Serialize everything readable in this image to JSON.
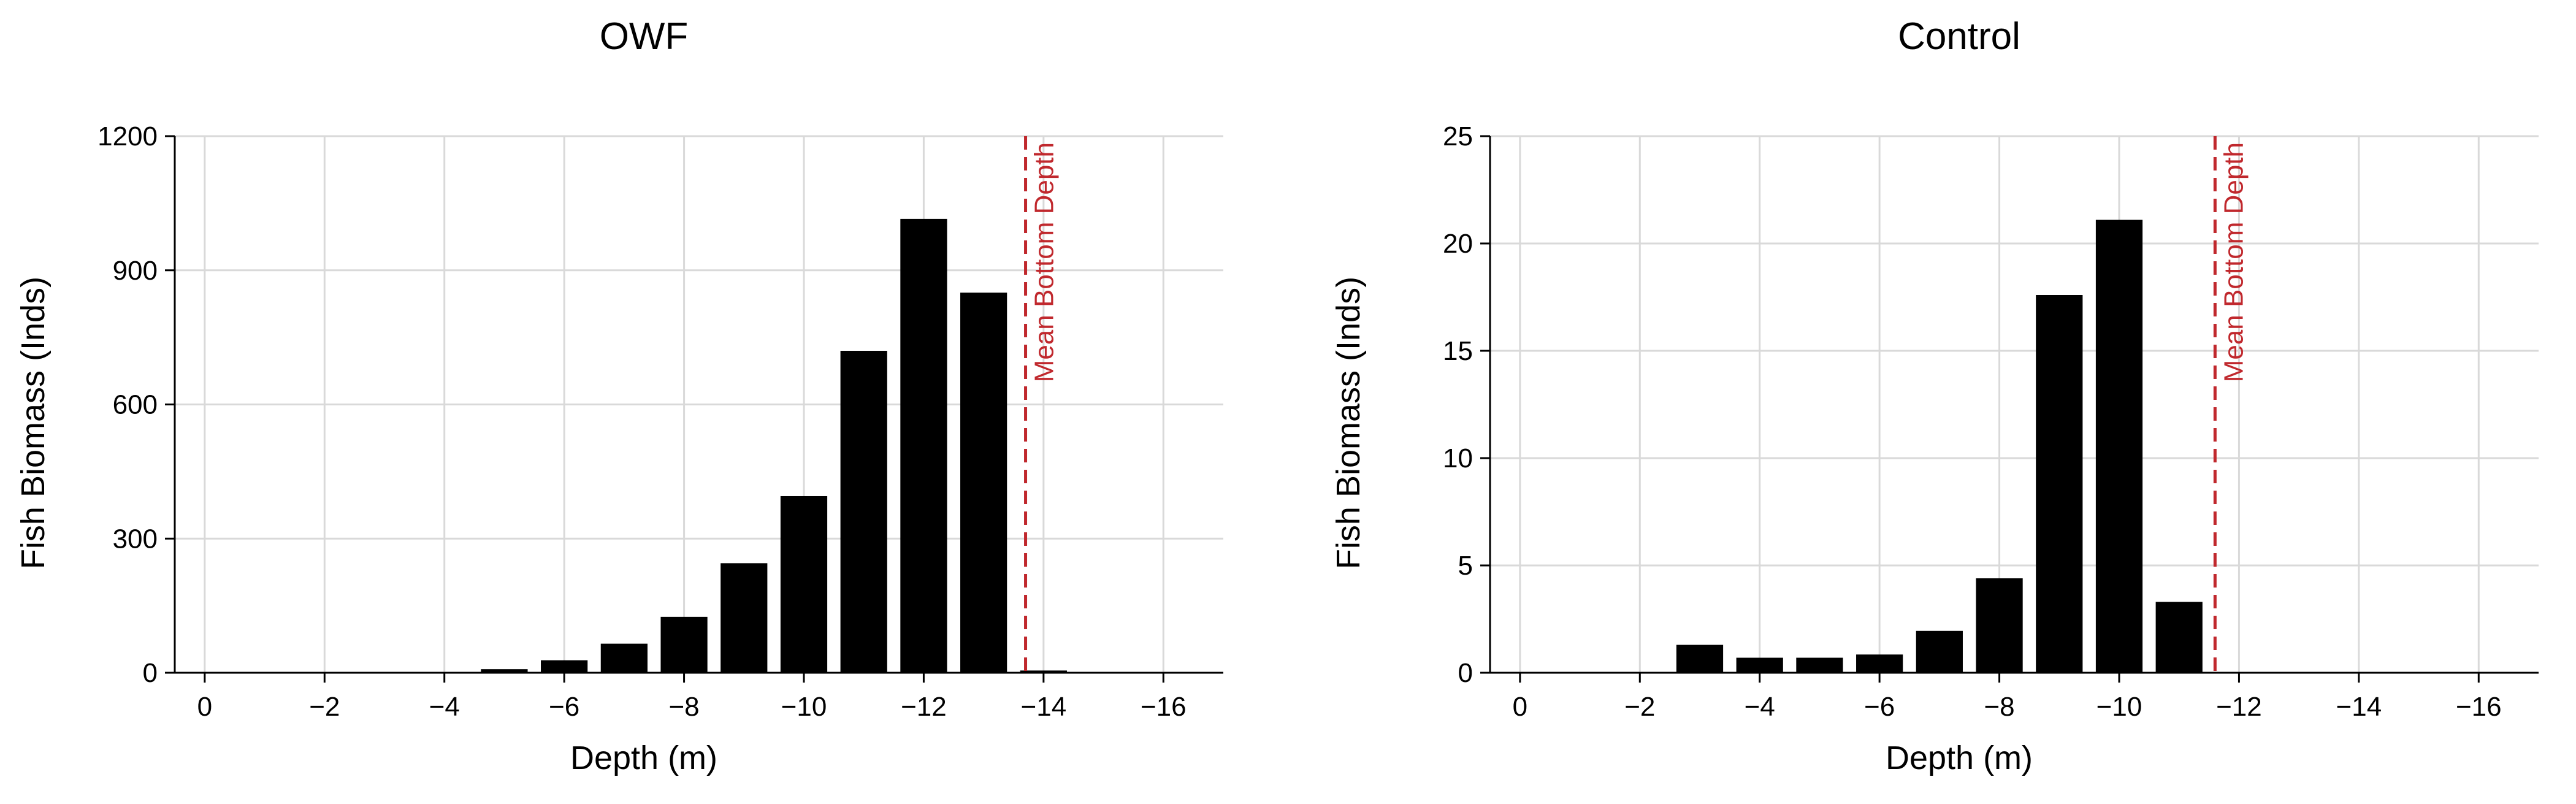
{
  "colors": {
    "bar": "#000000",
    "grid": "#d9d9d9",
    "axis": "#000000",
    "reference": "#c0282d",
    "background": "#ffffff"
  },
  "chart_data": [
    {
      "type": "bar",
      "title": "OWF",
      "xlabel": "Depth (m)",
      "ylabel": "Fish Biomass (Inds)",
      "xlim": [
        0.5,
        -17
      ],
      "ylim": [
        0,
        1200
      ],
      "xticks": [
        0,
        -2,
        -4,
        -6,
        -8,
        -10,
        -12,
        -14,
        -16
      ],
      "xtick_labels": [
        "0",
        "−2",
        "−4",
        "−6",
        "−8",
        "−10",
        "−12",
        "−14",
        "−16"
      ],
      "yticks": [
        0,
        300,
        600,
        900,
        1200
      ],
      "ytick_labels": [
        "0",
        "300",
        "600",
        "900",
        "1200"
      ],
      "grid": true,
      "x": [
        -3,
        -4,
        -5,
        -6,
        -7,
        -8,
        -9,
        -10,
        -11,
        -12,
        -13,
        -14
      ],
      "values": [
        1,
        2,
        8,
        28,
        65,
        125,
        245,
        395,
        720,
        1015,
        850,
        5
      ],
      "reference_line": {
        "x": -13.7,
        "label": "Mean Bottom Depth"
      }
    },
    {
      "type": "bar",
      "title": "Control",
      "xlabel": "Depth (m)",
      "ylabel": "Fish Biomass (Inds)",
      "xlim": [
        0.5,
        -17
      ],
      "ylim": [
        0,
        25
      ],
      "xticks": [
        0,
        -2,
        -4,
        -6,
        -8,
        -10,
        -12,
        -14,
        -16
      ],
      "xtick_labels": [
        "0",
        "−2",
        "−4",
        "−6",
        "−8",
        "−10",
        "−12",
        "−14",
        "−16"
      ],
      "yticks": [
        0,
        5,
        10,
        15,
        20,
        25
      ],
      "ytick_labels": [
        "0",
        "5",
        "10",
        "15",
        "20",
        "25"
      ],
      "grid": true,
      "x": [
        -3,
        -4,
        -5,
        -6,
        -7,
        -8,
        -9,
        -10,
        -11
      ],
      "values": [
        1.3,
        0.7,
        0.7,
        0.85,
        1.95,
        4.4,
        17.6,
        21.1,
        3.3
      ],
      "reference_line": {
        "x": -11.6,
        "label": "Mean Bottom Depth"
      }
    }
  ]
}
